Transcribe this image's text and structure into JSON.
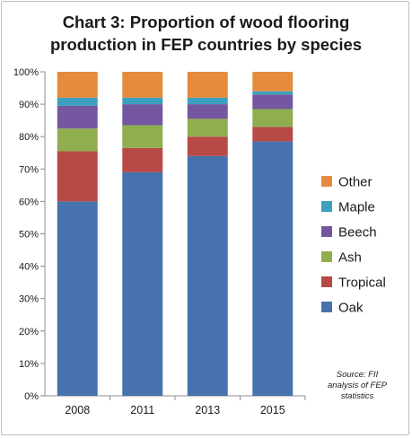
{
  "chart_data": {
    "type": "bar",
    "stacked": true,
    "title": "Chart 3: Proportion of wood flooring production in FEP countries by species",
    "title_lines": [
      "Chart 3: Proportion of wood flooring",
      "production in FEP countries by species"
    ],
    "categories": [
      "2008",
      "2011",
      "2013",
      "2015"
    ],
    "series": [
      {
        "name": "Oak",
        "color": "#4672AE",
        "values": [
          60,
          69,
          74,
          78.5
        ]
      },
      {
        "name": "Tropical",
        "color": "#B84A46",
        "values": [
          15.5,
          7.5,
          6,
          4.5
        ]
      },
      {
        "name": "Ash",
        "color": "#90AE4F",
        "values": [
          7,
          7,
          5.5,
          5.5
        ]
      },
      {
        "name": "Beech",
        "color": "#7457A0",
        "values": [
          7,
          6.5,
          4.5,
          4.5
        ]
      },
      {
        "name": "Maple",
        "color": "#3CA0BE",
        "values": [
          2.5,
          2,
          2,
          1
        ]
      },
      {
        "name": "Other",
        "color": "#E58B3D",
        "values": [
          8,
          8,
          8,
          6
        ]
      }
    ],
    "ylim": [
      0,
      100
    ],
    "yticks": [
      "0%",
      "10%",
      "20%",
      "30%",
      "40%",
      "50%",
      "60%",
      "70%",
      "80%",
      "90%",
      "100%"
    ],
    "grid": false,
    "legend_position": "right",
    "legend_order": [
      "Other",
      "Maple",
      "Beech",
      "Ash",
      "Tropical",
      "Oak"
    ],
    "source_note": [
      "Source: FII",
      "analysis of FEP",
      "statistics"
    ]
  }
}
